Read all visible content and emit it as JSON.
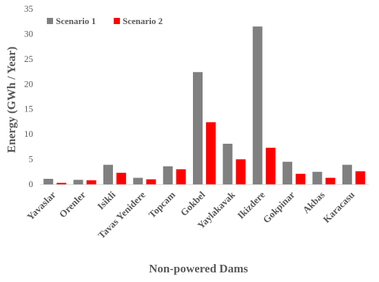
{
  "chart_data": {
    "type": "bar",
    "xlabel": "Non-powered Dams",
    "ylabel": "Energy (GWh / Year)",
    "ylim": [
      0,
      35
    ],
    "yticks": [
      0,
      5,
      10,
      15,
      20,
      25,
      30,
      35
    ],
    "grid": false,
    "legend_position": "top-left",
    "categories": [
      "Yavaslar",
      "Orenler",
      "Isikli",
      "Tavas Yenidere",
      "Topcam",
      "Gokbel",
      "Yaylakavak",
      "Ikizdere",
      "Gokpinar",
      "Akbas",
      "Karacasu"
    ],
    "series": [
      {
        "name": "Scenario 1",
        "color": "#808080",
        "values": [
          1.1,
          0.9,
          3.9,
          1.3,
          3.6,
          22.4,
          8.1,
          31.5,
          4.5,
          2.5,
          3.9
        ]
      },
      {
        "name": "Scenario 2",
        "color": "#ff0000",
        "values": [
          0.3,
          0.8,
          2.3,
          1.0,
          3.0,
          12.4,
          5.0,
          7.3,
          2.1,
          1.3,
          2.6
        ]
      }
    ]
  }
}
